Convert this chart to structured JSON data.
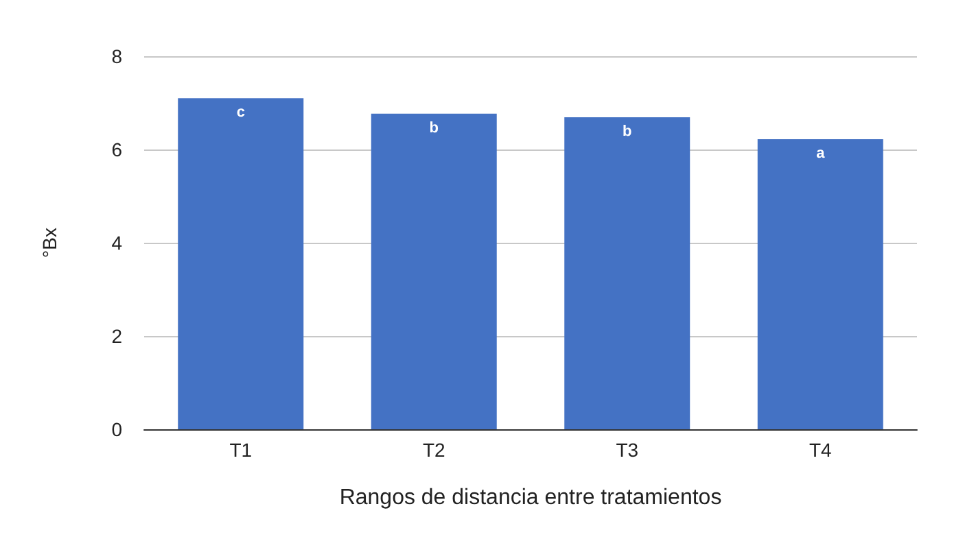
{
  "chart_data": {
    "type": "bar",
    "xlabel": "Rangos de distancia entre tratamientos",
    "ylabel": "°Bx",
    "categories": [
      "T1",
      "T2",
      "T3",
      "T4"
    ],
    "values": [
      7.1,
      6.77,
      6.69,
      6.22
    ],
    "value_labels": [
      "c",
      "b",
      "b",
      "a"
    ],
    "color": "#4472c4",
    "ylim": [
      0,
      8
    ],
    "yticks": [
      0,
      2,
      4,
      6,
      8
    ],
    "grid": "y"
  }
}
